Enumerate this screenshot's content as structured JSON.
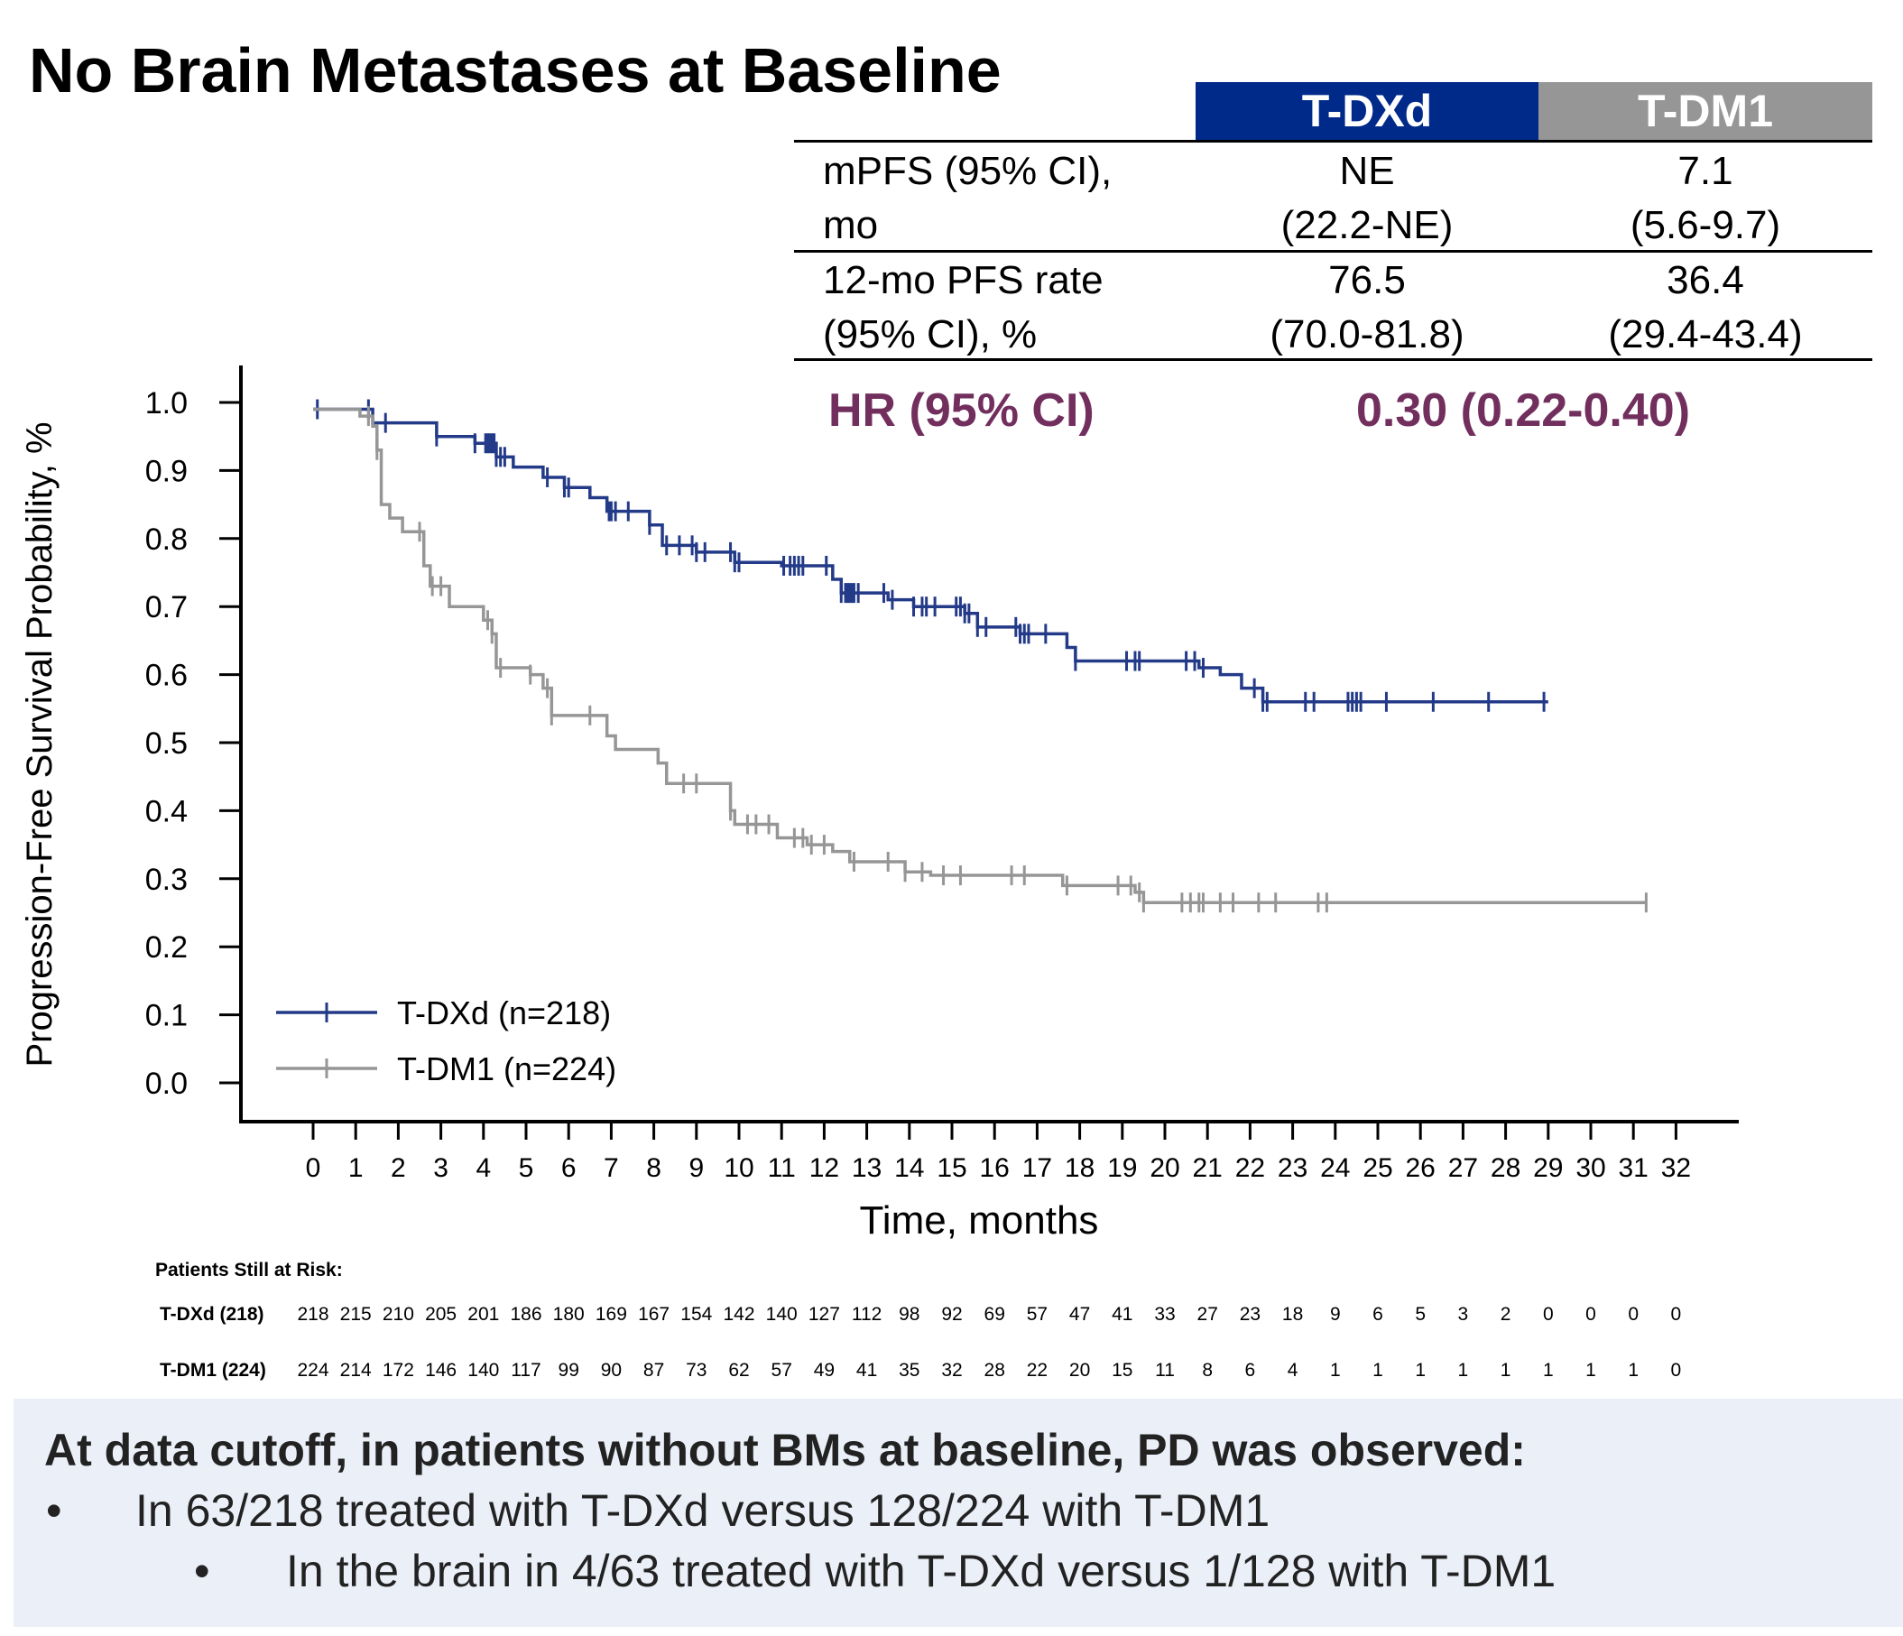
{
  "title": "No Brain Metastases at Baseline",
  "table": {
    "columns": [
      "T-DXd",
      "T-DM1"
    ],
    "column_colors": [
      "#002a8a",
      "#969696"
    ],
    "rows": [
      {
        "label": [
          "mPFS (95% CI),",
          "mo"
        ],
        "tdxd": [
          "NE",
          "(22.2-NE)"
        ],
        "tdm1": [
          "7.1",
          "(5.6-9.7)"
        ]
      },
      {
        "label": [
          "12-mo PFS rate",
          "(95% CI), %"
        ],
        "tdxd": [
          "76.5",
          "(70.0-81.8)"
        ],
        "tdm1": [
          "36.4",
          "(29.4-43.4)"
        ]
      }
    ],
    "hr_label": "HR (95% CI)",
    "hr_value": "0.30 (0.22-0.40)",
    "hr_color": "#722f5e"
  },
  "chart_data": {
    "type": "line",
    "xlabel": "Time, months",
    "ylabel": "Progression-Free Survival Probability, %",
    "xlim": [
      0,
      32
    ],
    "ylim": [
      0,
      1
    ],
    "x_ticks": [
      0,
      1,
      2,
      3,
      4,
      5,
      6,
      7,
      8,
      9,
      10,
      11,
      12,
      13,
      14,
      15,
      16,
      17,
      18,
      19,
      20,
      21,
      22,
      23,
      24,
      25,
      26,
      27,
      28,
      29,
      30,
      31,
      32
    ],
    "y_ticks": [
      "0.0",
      "0.1",
      "0.2",
      "0.3",
      "0.4",
      "0.5",
      "0.6",
      "0.7",
      "0.8",
      "0.9",
      "1.0"
    ],
    "grid": false,
    "legend_position": "bottom-left",
    "series": [
      {
        "name": "T-DXd (n=218)",
        "color": "#233a88",
        "steps": [
          [
            0,
            0.99
          ],
          [
            1.4,
            0.97
          ],
          [
            2.9,
            0.95
          ],
          [
            3.8,
            0.94
          ],
          [
            4.3,
            0.92
          ],
          [
            4.7,
            0.905
          ],
          [
            5.4,
            0.89
          ],
          [
            5.9,
            0.875
          ],
          [
            6.5,
            0.86
          ],
          [
            6.9,
            0.84
          ],
          [
            7.9,
            0.82
          ],
          [
            8.2,
            0.79
          ],
          [
            9.0,
            0.78
          ],
          [
            9.9,
            0.765
          ],
          [
            11.0,
            0.76
          ],
          [
            12.2,
            0.74
          ],
          [
            12.4,
            0.72
          ],
          [
            13.5,
            0.71
          ],
          [
            14.1,
            0.7
          ],
          [
            15.3,
            0.69
          ],
          [
            15.6,
            0.67
          ],
          [
            16.6,
            0.66
          ],
          [
            17.7,
            0.64
          ],
          [
            17.9,
            0.62
          ],
          [
            20.8,
            0.61
          ],
          [
            21.3,
            0.6
          ],
          [
            21.8,
            0.58
          ],
          [
            22.3,
            0.56
          ],
          [
            29.0,
            0.56
          ]
        ],
        "censor_x": [
          0.1,
          1.3,
          1.7,
          2.9,
          3.8,
          4.05,
          4.1,
          4.15,
          4.2,
          4.25,
          4.3,
          4.4,
          4.5,
          5.5,
          5.9,
          6,
          6.95,
          7,
          7.1,
          7.4,
          7.9,
          8.3,
          8.6,
          8.9,
          9,
          9.2,
          9.8,
          9.9,
          10,
          11.05,
          11.2,
          11.3,
          11.4,
          11.5,
          12.05,
          12.4,
          12.5,
          12.55,
          12.6,
          12.65,
          12.7,
          12.8,
          13.4,
          13.6,
          14.1,
          14.3,
          14.4,
          14.6,
          15.1,
          15.2,
          15.3,
          15.4,
          15.6,
          15.8,
          16.5,
          16.6,
          16.7,
          16.8,
          17.2,
          17.9,
          19.1,
          19.3,
          19.4,
          20.5,
          20.7,
          20.9,
          22.1,
          22.3,
          22.4,
          23.3,
          23.5,
          24.3,
          24.4,
          24.5,
          24.6,
          25.2,
          26.3,
          27.6,
          28.9
        ]
      },
      {
        "name": "T-DM1 (n=224)",
        "color": "#969696",
        "steps": [
          [
            0,
            0.99
          ],
          [
            1.1,
            0.98
          ],
          [
            1.4,
            0.965
          ],
          [
            1.5,
            0.93
          ],
          [
            1.6,
            0.85
          ],
          [
            1.8,
            0.83
          ],
          [
            2.1,
            0.81
          ],
          [
            2.6,
            0.76
          ],
          [
            2.75,
            0.73
          ],
          [
            3.2,
            0.7
          ],
          [
            4.0,
            0.68
          ],
          [
            4.2,
            0.66
          ],
          [
            4.3,
            0.61
          ],
          [
            5.1,
            0.6
          ],
          [
            5.4,
            0.58
          ],
          [
            5.6,
            0.54
          ],
          [
            6.9,
            0.51
          ],
          [
            7.1,
            0.49
          ],
          [
            8.1,
            0.47
          ],
          [
            8.3,
            0.44
          ],
          [
            9.8,
            0.4
          ],
          [
            9.9,
            0.38
          ],
          [
            10.9,
            0.36
          ],
          [
            11.6,
            0.35
          ],
          [
            12.2,
            0.34
          ],
          [
            12.6,
            0.325
          ],
          [
            13.9,
            0.31
          ],
          [
            14.5,
            0.305
          ],
          [
            17.6,
            0.29
          ],
          [
            19.3,
            0.28
          ],
          [
            19.5,
            0.265
          ],
          [
            31.3,
            0.265
          ]
        ],
        "censor_x": [
          1.3,
          1.5,
          2.5,
          2.8,
          3.0,
          4.1,
          4.2,
          4.4,
          5.1,
          5.5,
          5.6,
          6.5,
          8.7,
          9.0,
          9.8,
          10.2,
          10.4,
          10.7,
          11.3,
          11.5,
          11.7,
          12.0,
          12.7,
          13.5,
          13.9,
          14.3,
          14.8,
          15.2,
          16.4,
          16.7,
          17.7,
          18.9,
          19.2,
          19.4,
          19.5,
          20.4,
          20.6,
          20.8,
          20.9,
          21.3,
          21.6,
          22.2,
          22.6,
          23.6,
          23.8,
          31.3
        ]
      }
    ]
  },
  "at_risk": {
    "heading": "Patients Still at Risk:",
    "rows": [
      {
        "label": "T-DXd (218)",
        "values": [
          "218",
          "215",
          "210",
          "205",
          "201",
          "186",
          "180",
          "169",
          "167",
          "154",
          "142",
          "140",
          "127",
          "112",
          "98",
          "92",
          "69",
          "57",
          "47",
          "41",
          "33",
          "27",
          "23",
          "18",
          "9",
          "6",
          "5",
          "3",
          "2",
          "0",
          "0",
          "0",
          "0"
        ]
      },
      {
        "label": "T-DM1 (224)",
        "values": [
          "224",
          "214",
          "172",
          "146",
          "140",
          "117",
          "99",
          "90",
          "87",
          "73",
          "62",
          "57",
          "49",
          "41",
          "35",
          "32",
          "28",
          "22",
          "20",
          "15",
          "11",
          "8",
          "6",
          "4",
          "1",
          "1",
          "1",
          "1",
          "1",
          "1",
          "1",
          "1",
          "0"
        ]
      }
    ]
  },
  "footer": {
    "background": "#eaeff8",
    "heading": "At data cutoff, in patients without BMs at baseline, PD was observed:",
    "bullet_1": "In 63/218 treated with T-DXd versus 128/224 with T-DM1",
    "bullet_2": "In the brain in 4/63 treated with T-DXd versus 1/128 with T-DM1",
    "bullet_symbol": "•"
  }
}
